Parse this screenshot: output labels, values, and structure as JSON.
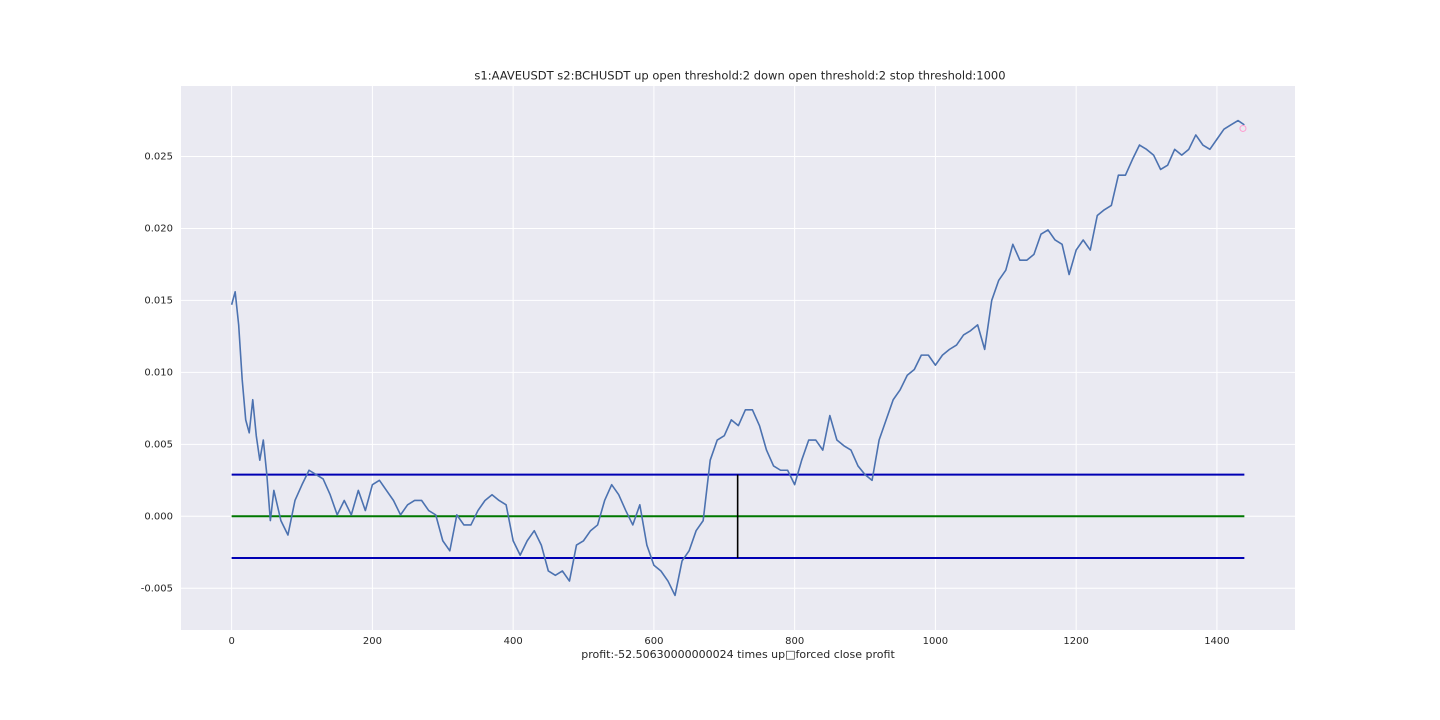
{
  "chart_data": {
    "type": "line",
    "title": "s1:AAVEUSDT s2:BCHUSDT up open threshold:2 down open threshold:2 stop threshold:1000",
    "xlabel": "profit:-52.50630000000024 times up□forced close profit",
    "xlim": [
      -71.95,
      1510.95
    ],
    "xticks": [
      0,
      200,
      400,
      600,
      800,
      1000,
      1200,
      1400
    ],
    "ylim": [
      -0.0079,
      0.0299
    ],
    "yticks": [
      -0.005,
      {
        "value": 0,
        "label": "0.000"
      },
      0.005,
      {
        "value": 0.01,
        "label": "0.010"
      },
      0.015,
      {
        "value": 0.02,
        "label": "0.020"
      },
      0.025
    ],
    "grid": true,
    "x": [
      0,
      5,
      10,
      15,
      20,
      25,
      30,
      35,
      40,
      45,
      50,
      55,
      60,
      70,
      80,
      90,
      100,
      110,
      120,
      130,
      140,
      150,
      160,
      170,
      180,
      190,
      200,
      210,
      220,
      230,
      240,
      250,
      260,
      270,
      280,
      290,
      300,
      310,
      320,
      330,
      340,
      350,
      360,
      370,
      380,
      390,
      400,
      410,
      420,
      430,
      440,
      450,
      460,
      470,
      480,
      490,
      500,
      510,
      520,
      530,
      540,
      550,
      560,
      570,
      580,
      590,
      600,
      610,
      620,
      630,
      640,
      650,
      660,
      670,
      680,
      690,
      700,
      710,
      720,
      730,
      740,
      750,
      760,
      770,
      780,
      790,
      800,
      810,
      820,
      830,
      840,
      850,
      860,
      870,
      880,
      890,
      900,
      910,
      920,
      930,
      940,
      950,
      960,
      970,
      980,
      990,
      1000,
      1010,
      1020,
      1030,
      1040,
      1050,
      1060,
      1070,
      1080,
      1090,
      1100,
      1110,
      1120,
      1130,
      1140,
      1150,
      1160,
      1170,
      1180,
      1190,
      1200,
      1210,
      1220,
      1230,
      1240,
      1250,
      1260,
      1270,
      1280,
      1290,
      1300,
      1310,
      1320,
      1330,
      1340,
      1350,
      1360,
      1370,
      1380,
      1390,
      1400,
      1410,
      1420,
      1430,
      1439
    ],
    "series": [
      {
        "color": "#4c72b0",
        "values": [
          0.0147,
          0.0156,
          0.0133,
          0.0095,
          0.0067,
          0.0058,
          0.0081,
          0.0056,
          0.0039,
          0.0053,
          0.0029,
          -0.0003,
          0.0018,
          -0.0003,
          -0.0013,
          0.0011,
          0.0022,
          0.0032,
          0.0029,
          0.0026,
          0.0015,
          0.0001,
          0.0011,
          0.0001,
          0.0018,
          0.0004,
          0.0022,
          0.0025,
          0.0018,
          0.0011,
          0.0001,
          0.0008,
          0.0011,
          0.0011,
          0.0004,
          0.0001,
          -0.0017,
          -0.0024,
          0.0001,
          -0.0006,
          -0.0006,
          0.0004,
          0.0011,
          0.0015,
          0.0011,
          0.0008,
          -0.0017,
          -0.0027,
          -0.0017,
          -0.001,
          -0.002,
          -0.0038,
          -0.0041,
          -0.0038,
          -0.0045,
          -0.002,
          -0.0017,
          -0.001,
          -0.0006,
          0.0011,
          0.0022,
          0.0015,
          0.0004,
          -0.0006,
          0.0008,
          -0.002,
          -0.0034,
          -0.0038,
          -0.0045,
          -0.0055,
          -0.0031,
          -0.0024,
          -0.001,
          -0.0003,
          0.0039,
          0.0053,
          0.0056,
          0.0067,
          0.0063,
          0.0074,
          0.0074,
          0.0063,
          0.0046,
          0.0035,
          0.0032,
          0.0032,
          0.0022,
          0.0039,
          0.0053,
          0.0053,
          0.0046,
          0.007,
          0.0053,
          0.0049,
          0.0046,
          0.0035,
          0.0029,
          0.0025,
          0.0053,
          0.0067,
          0.0081,
          0.0088,
          0.0098,
          0.0102,
          0.0112,
          0.0112,
          0.0105,
          0.0112,
          0.0116,
          0.0119,
          0.0126,
          0.0129,
          0.0133,
          0.0116,
          0.015,
          0.0164,
          0.0171,
          0.0189,
          0.0178,
          0.0178,
          0.0182,
          0.0196,
          0.0199,
          0.0192,
          0.0189,
          0.0168,
          0.0185,
          0.0192,
          0.0185,
          0.0209,
          0.0213,
          0.0216,
          0.0237,
          0.0237,
          0.0248,
          0.0258,
          0.0255,
          0.0251,
          0.0241,
          0.0244,
          0.0255,
          0.0251,
          0.0255,
          0.0265,
          0.0258,
          0.0255,
          0.0262,
          0.0269,
          0.0272,
          0.0275,
          0.0272
        ]
      }
    ],
    "hlines": [
      {
        "y": 0.0029,
        "xmin": 0,
        "xmax": 1439,
        "color": "#0000b4"
      },
      {
        "y": 0,
        "xmin": 0,
        "xmax": 1439,
        "color": "#007800"
      },
      {
        "y": -0.0029,
        "xmin": 0,
        "xmax": 1439,
        "color": "#0000b4"
      }
    ],
    "vlines": [
      {
        "x": 719,
        "ymin": -0.0029,
        "ymax": 0.0029,
        "color": "#000000"
      }
    ],
    "markers": [
      {
        "x": 1437,
        "y": 0.02695,
        "color": "#ff9ccf"
      }
    ]
  }
}
